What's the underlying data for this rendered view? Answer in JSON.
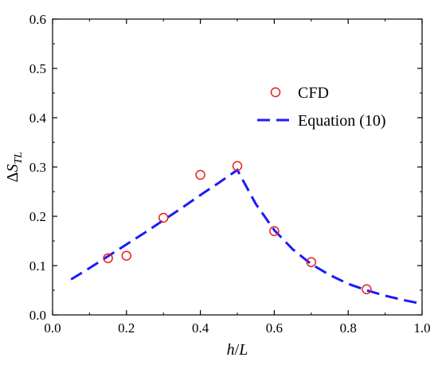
{
  "chart_data": {
    "type": "scatter",
    "xlabel": "h/L",
    "ylabel": "ΔS_TL",
    "xlim": [
      0.0,
      1.0
    ],
    "ylim": [
      0.0,
      0.6
    ],
    "x_ticks": [
      0.0,
      0.2,
      0.4,
      0.6,
      0.8,
      1.0
    ],
    "y_ticks": [
      0.0,
      0.1,
      0.2,
      0.3,
      0.4,
      0.5,
      0.6
    ],
    "x_tick_labels": [
      "0.0",
      "0.2",
      "0.4",
      "0.6",
      "0.8",
      "1.0"
    ],
    "y_tick_labels": [
      "0.0",
      "0.1",
      "0.2",
      "0.3",
      "0.4",
      "0.5",
      "0.6"
    ],
    "grid": false,
    "legend_position": "right",
    "series": [
      {
        "name": "CFD",
        "kind": "scatter",
        "marker": "open-circle",
        "color": "#e8201c",
        "x": [
          0.15,
          0.2,
          0.3,
          0.4,
          0.5,
          0.6,
          0.7,
          0.85
        ],
        "y": [
          0.115,
          0.12,
          0.197,
          0.284,
          0.302,
          0.17,
          0.107,
          0.052
        ]
      },
      {
        "name": "Equation (10)",
        "kind": "line",
        "style": "dashed",
        "color": "#1a1aff",
        "x": [
          0.05,
          0.1,
          0.15,
          0.2,
          0.25,
          0.3,
          0.35,
          0.4,
          0.45,
          0.5,
          0.55,
          0.6,
          0.65,
          0.7,
          0.75,
          0.8,
          0.85,
          0.9,
          0.95,
          0.99
        ],
        "y": [
          0.072,
          0.095,
          0.119,
          0.143,
          0.167,
          0.192,
          0.217,
          0.243,
          0.268,
          0.294,
          0.225,
          0.172,
          0.133,
          0.103,
          0.081,
          0.063,
          0.05,
          0.039,
          0.03,
          0.024
        ]
      }
    ]
  }
}
